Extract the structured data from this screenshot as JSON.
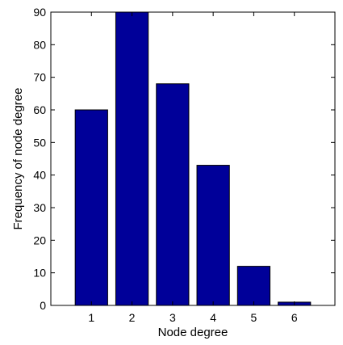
{
  "chart_data": {
    "type": "bar",
    "title": "",
    "xlabel": "Node degree",
    "ylabel": "Frequency of node degree",
    "categories": [
      "1",
      "2",
      "3",
      "4",
      "5",
      "6"
    ],
    "values": [
      60,
      90,
      68,
      43,
      12,
      1
    ],
    "ylim": [
      0,
      90
    ],
    "xlim": [
      0,
      7
    ],
    "yticks": [
      "0",
      "10",
      "20",
      "30",
      "40",
      "50",
      "60",
      "70",
      "80",
      "90"
    ],
    "grid": false,
    "legend": "none",
    "bar_color": "#000099"
  }
}
